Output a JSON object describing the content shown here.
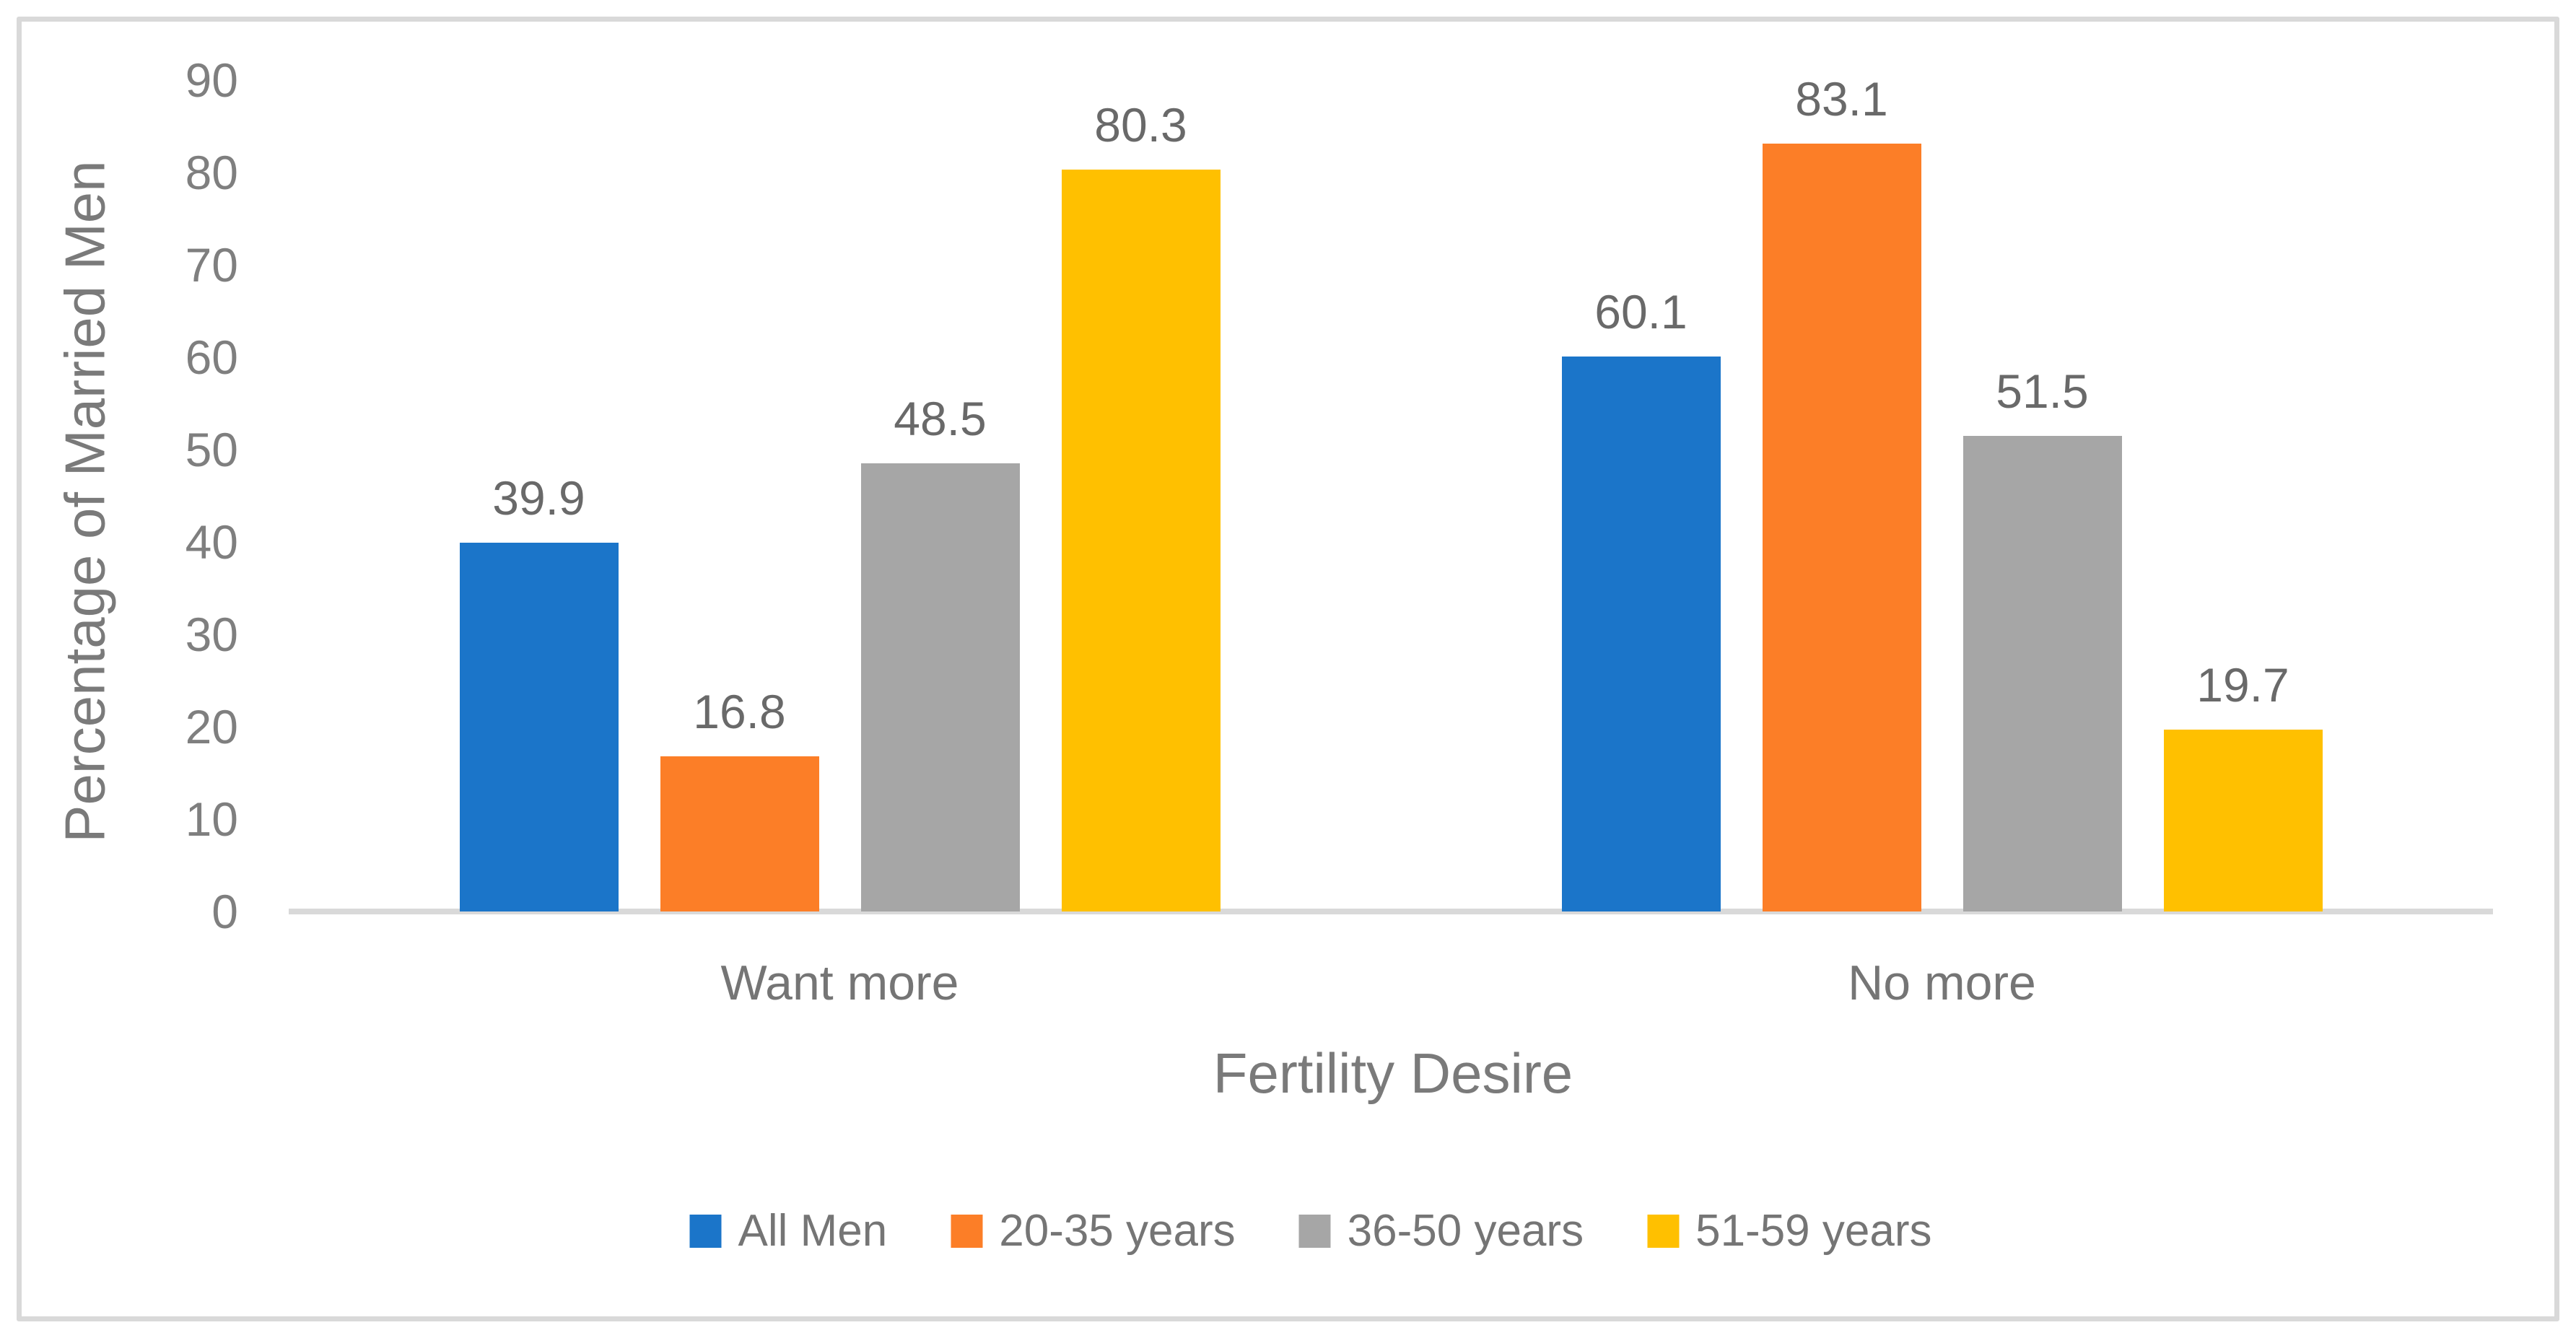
{
  "figure": {
    "background_color": "#FFFFFF",
    "frame_border_color": "#D9D9D9",
    "axis_line_color": "#D9D9D9",
    "axis_text_color": "#7F7F7F",
    "data_label_color": "#696969"
  },
  "chart_data": {
    "type": "bar",
    "title": "",
    "categories": [
      "Want more",
      "No more"
    ],
    "series": [
      {
        "name": "All Men",
        "color": "#1B75C9",
        "values": [
          39.9,
          60.1
        ]
      },
      {
        "name": "20-35 years",
        "color": "#FC7E27",
        "values": [
          16.8,
          83.1
        ]
      },
      {
        "name": "36-50 years",
        "color": "#A6A6A6",
        "values": [
          48.5,
          51.5
        ]
      },
      {
        "name": "51-59 years",
        "color": "#FFC000",
        "values": [
          80.3,
          19.7
        ]
      }
    ],
    "data_labels": [
      "39.9",
      "16.8",
      "48.5",
      "80.3",
      "60.1",
      "83.1",
      "51.5",
      "19.7"
    ],
    "xlabel": "Fertility Desire",
    "ylabel": "Percentage of Married Men",
    "ylim": [
      0,
      90
    ],
    "yticks": [
      0,
      10,
      20,
      30,
      40,
      50,
      60,
      70,
      80,
      90
    ],
    "grid": false,
    "legend_position": "bottom",
    "legend_entries": [
      "All Men",
      "20-35 years",
      "36-50 years",
      "51-59 years"
    ]
  }
}
